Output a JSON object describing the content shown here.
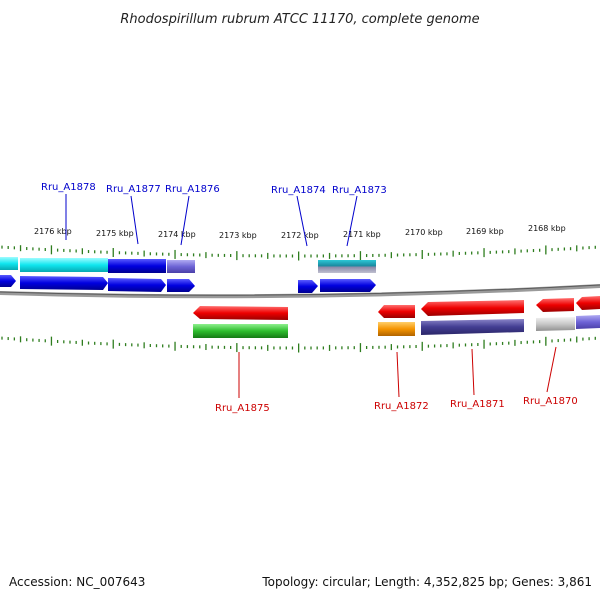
{
  "title": "Rhodospirillum rubrum ATCC 11170, complete genome",
  "footer": {
    "accession": "Accession: NC_007643",
    "summary": "Topology: circular; Length: 4,352,825 bp; Genes: 3,861"
  },
  "scale_labels": [
    "2176 kbp",
    "2175 kbp",
    "2174 kbp",
    "2173 kbp",
    "2172 kbp",
    "2171 kbp",
    "2170 kbp",
    "2169 kbp",
    "2168 kbp"
  ],
  "colors": {
    "forward_label": "#0000cc",
    "reverse_label": "#cc0000",
    "tick": "#2e7d1e",
    "backbone": "#8a8a8a"
  },
  "genes_forward": [
    {
      "label": "Rru_A1878"
    },
    {
      "label": "Rru_A1877"
    },
    {
      "label": "Rru_A1876"
    },
    {
      "label": "Rru_A1874"
    },
    {
      "label": "Rru_A1873"
    }
  ],
  "genes_reverse": [
    {
      "label": "Rru_A1875"
    },
    {
      "label": "Rru_A1872"
    },
    {
      "label": "Rru_A1871"
    },
    {
      "label": "Rru_A1870"
    }
  ]
}
